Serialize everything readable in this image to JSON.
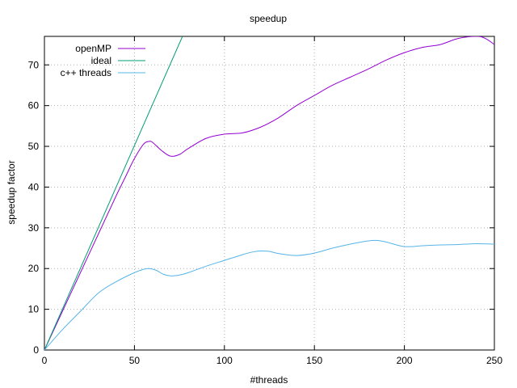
{
  "chart_data": {
    "type": "line",
    "title": "speedup",
    "xlabel": "#threads",
    "ylabel": "speedup factor",
    "xlim": [
      0,
      250
    ],
    "ylim": [
      0,
      77
    ],
    "xticks": [
      0,
      50,
      100,
      150,
      200,
      250
    ],
    "yticks": [
      0,
      10,
      20,
      30,
      40,
      50,
      60,
      70
    ],
    "grid": true,
    "legend_position": "top-left",
    "series": [
      {
        "name": "openMP",
        "color": "#9400d3",
        "x": [
          0,
          10,
          20,
          30,
          40,
          45,
          50,
          55,
          58,
          60,
          65,
          70,
          75,
          80,
          90,
          100,
          110,
          120,
          130,
          140,
          150,
          160,
          170,
          180,
          190,
          200,
          210,
          220,
          230,
          240,
          245,
          250
        ],
        "y": [
          0,
          9.5,
          19,
          28.5,
          38,
          42.5,
          47,
          50.5,
          51.2,
          51,
          49,
          47.6,
          48,
          49.5,
          52,
          53,
          53.3,
          54.7,
          57,
          60,
          62.5,
          65,
          67,
          69,
          71.2,
          73,
          74.3,
          75,
          76.5,
          77,
          76.5,
          75
        ]
      },
      {
        "name": "ideal",
        "color": "#009e73",
        "x": [
          0,
          76.7
        ],
        "y": [
          0,
          77
        ]
      },
      {
        "name": "c++ threads",
        "color": "#56b4e9",
        "x": [
          0,
          10,
          20,
          30,
          40,
          50,
          55,
          58,
          62,
          66,
          70,
          75,
          80,
          90,
          100,
          110,
          115,
          120,
          125,
          130,
          140,
          150,
          160,
          170,
          180,
          185,
          190,
          200,
          210,
          220,
          230,
          240,
          250
        ],
        "y": [
          0,
          5,
          9.5,
          14,
          16.8,
          19,
          19.8,
          20,
          19.6,
          18.6,
          18.2,
          18.4,
          19,
          20.6,
          22,
          23.4,
          24,
          24.3,
          24.2,
          23.7,
          23.2,
          23.8,
          25,
          26,
          26.8,
          26.9,
          26.5,
          25.4,
          25.6,
          25.8,
          25.9,
          26.1,
          26
        ]
      }
    ]
  }
}
